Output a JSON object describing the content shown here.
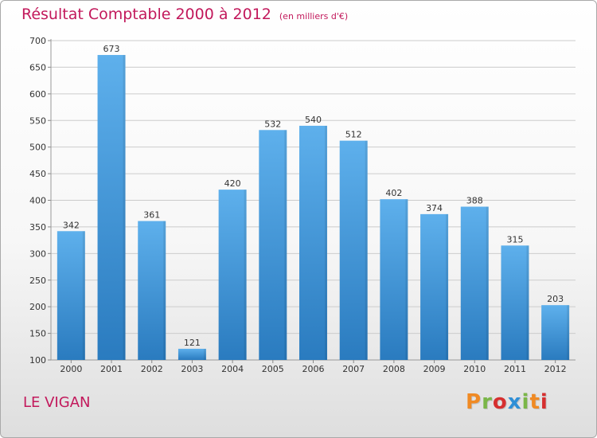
{
  "header": {
    "title": "Résultat Comptable 2000 à 2012",
    "unit": "(en milliers d'€)"
  },
  "footer": {
    "location": "LE VIGAN",
    "brand": "Proxiti"
  },
  "colors": {
    "title": "#c2185b",
    "bar_top": "#5eb0ec",
    "bar_bottom": "#2a7bbf",
    "grid": "#cccccc",
    "brand_letters": [
      "#f08a24",
      "#7ab648",
      "#d62f2f",
      "#2f8fd6",
      "#7ab648",
      "#f08a24",
      "#d62f2f"
    ]
  },
  "chart_data": {
    "type": "bar",
    "title": "Résultat Comptable 2000 à 2012",
    "subtitle": "(en milliers d'€)",
    "categories": [
      "2000",
      "2001",
      "2002",
      "2003",
      "2004",
      "2005",
      "2006",
      "2007",
      "2008",
      "2009",
      "2010",
      "2011",
      "2012"
    ],
    "values": [
      342,
      673,
      361,
      121,
      420,
      532,
      540,
      512,
      402,
      374,
      388,
      315,
      203
    ],
    "value_labels": [
      "342",
      "673",
      "361",
      "121",
      "420",
      "532",
      "540",
      "512",
      "402",
      "374",
      "388",
      "315",
      "203"
    ],
    "yticks": [
      "100",
      "150",
      "200",
      "250",
      "300",
      "350",
      "400",
      "450",
      "500",
      "550",
      "600",
      "650",
      "700"
    ],
    "ylim": [
      100,
      700
    ],
    "xlabel": "",
    "ylabel": "",
    "grid": true,
    "legend": "none"
  }
}
